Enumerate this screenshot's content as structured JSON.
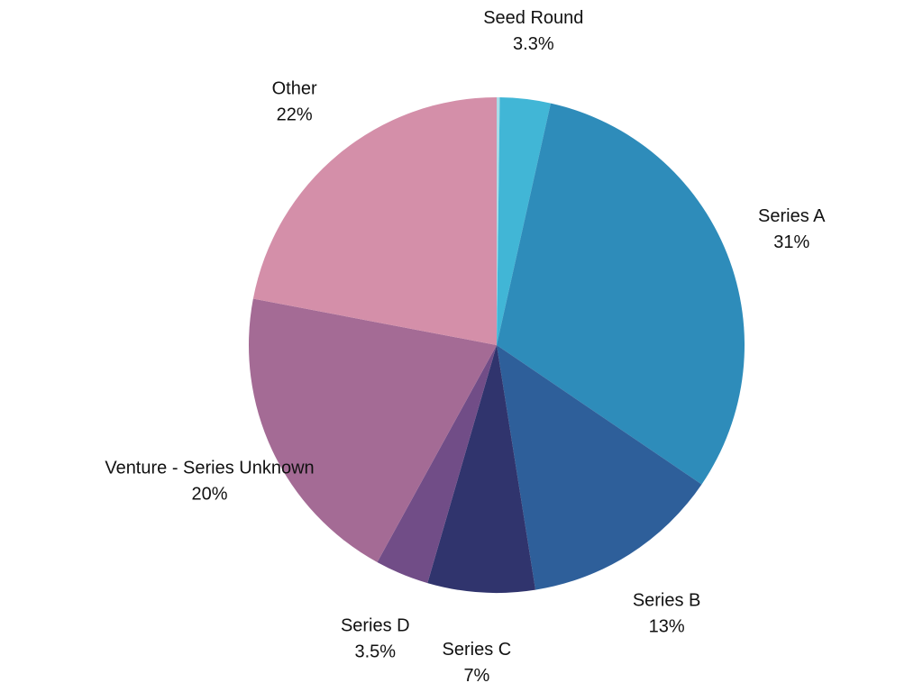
{
  "chart_data": {
    "type": "pie",
    "start_angle_deg": 0,
    "direction": "clockwise",
    "slices": [
      {
        "label": "",
        "value": 0.2,
        "display": "",
        "color": "#a9dde8"
      },
      {
        "label": "Seed Round",
        "value": 3.3,
        "display": "3.3%",
        "color": "#41b6d6"
      },
      {
        "label": "Series A",
        "value": 31,
        "display": "31%",
        "color": "#2e8cba"
      },
      {
        "label": "Series B",
        "value": 13,
        "display": "13%",
        "color": "#2e5f9a"
      },
      {
        "label": "Series C",
        "value": 7,
        "display": "7%",
        "color": "#30346d"
      },
      {
        "label": "Series D",
        "value": 3.5,
        "display": "3.5%",
        "color": "#714d87"
      },
      {
        "label": "Venture - Series Unknown",
        "value": 20,
        "display": "20%",
        "color": "#a46b95"
      },
      {
        "label": "Other",
        "value": 22,
        "display": "22%",
        "color": "#d48fa9"
      }
    ]
  }
}
